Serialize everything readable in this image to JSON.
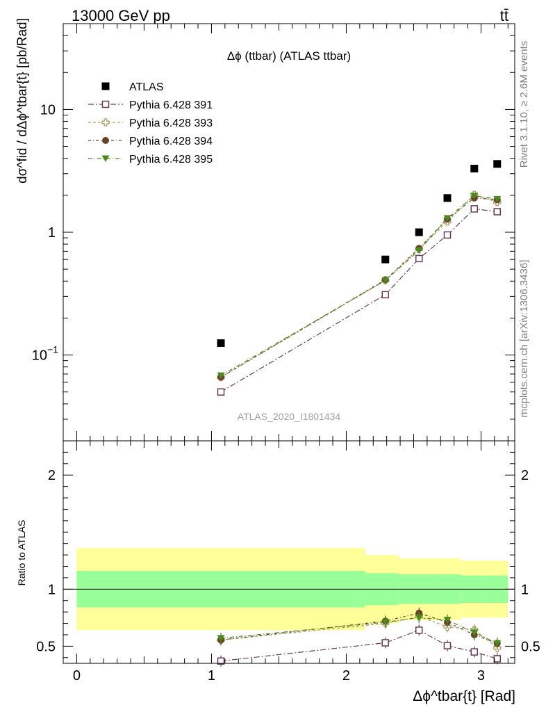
{
  "header": {
    "left": "13000 GeV pp",
    "right": "tt̄"
  },
  "side_labels": {
    "rivet": "Rivet 3.1.10, ≥ 2.6M events",
    "mcplots": "mcplots.cern.ch [arXiv:1306.3436]"
  },
  "colors": {
    "atlas": "#000000",
    "p391": "#6b3a55",
    "p393": "#a8a060",
    "p394": "#6b4226",
    "p395": "#4a8a1e",
    "band_green": "#99ff99",
    "band_yellow": "#ffff99"
  },
  "chart_data": [
    {
      "type": "scatter",
      "title": "Δϕ (ttbar) (ATLAS ttbar)",
      "analysis_label": "ATLAS_2020_I1801434",
      "ylabel": "dσ^fid / dΔϕ^tbar{t} [pb/Rad]",
      "yscale": "log",
      "xlim": [
        -0.1,
        3.25
      ],
      "ylim": [
        0.02,
        50
      ],
      "yticks": [
        0.1,
        1,
        10
      ],
      "ytick_labels": [
        "10^-1",
        "1",
        "10"
      ],
      "legend_position": "top-left",
      "x": [
        1.07,
        2.29,
        2.54,
        2.75,
        2.95,
        3.12
      ],
      "series": [
        {
          "name": "ATLAS",
          "marker": "square-filled",
          "values": [
            0.125,
            0.6,
            1.0,
            1.9,
            3.3,
            3.6
          ]
        },
        {
          "name": "Pythia 6.428 391",
          "marker": "square-open",
          "values": [
            0.05,
            0.31,
            0.61,
            0.95,
            1.55,
            1.47
          ]
        },
        {
          "name": "Pythia 6.428 393",
          "marker": "cross-open",
          "values": [
            0.066,
            0.405,
            0.73,
            1.22,
            2.02,
            1.76
          ]
        },
        {
          "name": "Pythia 6.428 394",
          "marker": "circle-filled",
          "values": [
            0.066,
            0.41,
            0.74,
            1.28,
            1.9,
            1.84
          ]
        },
        {
          "name": "Pythia 6.428 395",
          "marker": "triangle-down-filled",
          "values": [
            0.068,
            0.405,
            0.71,
            1.3,
            1.98,
            1.86
          ]
        }
      ]
    },
    {
      "type": "scatter",
      "ylabel": "Ratio to ATLAS",
      "xlabel": "Δϕ^tbar{t} [Rad]",
      "xlim": [
        -0.1,
        3.25
      ],
      "ylim": [
        0.35,
        2.3
      ],
      "xticks": [
        0,
        1,
        2,
        3
      ],
      "yticks": [
        0.5,
        1,
        2
      ],
      "ytick_labels": [
        "0.5",
        "1",
        "2"
      ],
      "x": [
        1.07,
        2.29,
        2.54,
        2.75,
        2.95,
        3.12
      ],
      "bins": [
        {
          "lo": 0.0,
          "hi": 2.14,
          "green": [
            0.84,
            1.16
          ],
          "yellow": [
            0.64,
            1.36
          ]
        },
        {
          "lo": 2.14,
          "hi": 2.39,
          "green": [
            0.86,
            1.14
          ],
          "yellow": [
            0.7,
            1.3
          ]
        },
        {
          "lo": 2.39,
          "hi": 2.67,
          "green": [
            0.87,
            1.13
          ],
          "yellow": [
            0.73,
            1.27
          ]
        },
        {
          "lo": 2.67,
          "hi": 2.85,
          "green": [
            0.87,
            1.13
          ],
          "yellow": [
            0.73,
            1.27
          ]
        },
        {
          "lo": 2.85,
          "hi": 3.02,
          "green": [
            0.88,
            1.12
          ],
          "yellow": [
            0.75,
            1.25
          ]
        },
        {
          "lo": 3.02,
          "hi": 3.2,
          "green": [
            0.88,
            1.12
          ],
          "yellow": [
            0.75,
            1.25
          ]
        }
      ],
      "series": [
        {
          "name": "Pythia 6.428 391",
          "values": [
            0.37,
            0.53,
            0.64,
            0.505,
            0.45,
            0.39
          ]
        },
        {
          "name": "Pythia 6.428 393",
          "values": [
            0.555,
            0.7,
            0.76,
            0.67,
            0.645,
            0.485
          ]
        },
        {
          "name": "Pythia 6.428 394",
          "values": [
            0.555,
            0.72,
            0.79,
            0.71,
            0.6,
            0.525
          ]
        },
        {
          "name": "Pythia 6.428 395",
          "values": [
            0.57,
            0.71,
            0.75,
            0.73,
            0.62,
            0.525
          ]
        }
      ]
    }
  ]
}
